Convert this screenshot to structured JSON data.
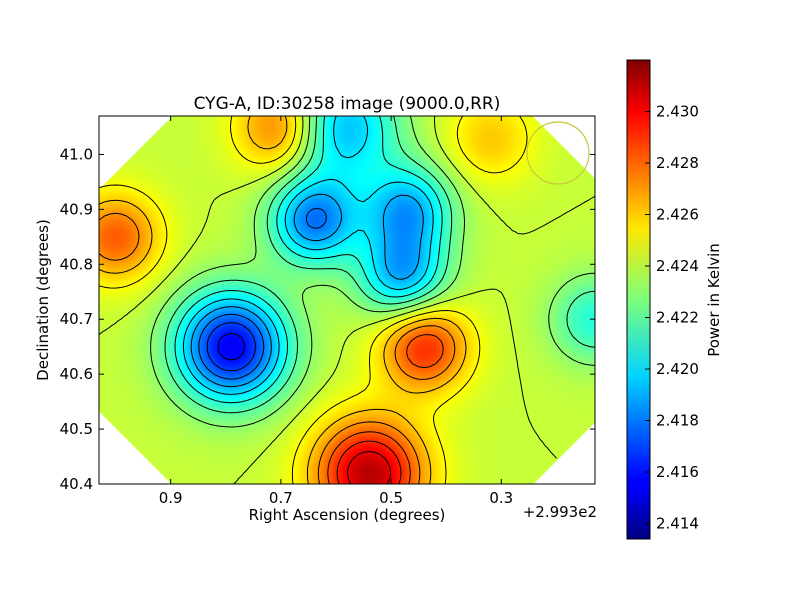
{
  "chart_data": {
    "type": "heatmap",
    "title": "CYG-A, ID:30258 image (9000.0,RR)",
    "xlabel": "Right Ascension (degrees)",
    "ylabel": "Declination (degrees)",
    "x_offset_label": "+2.993e2",
    "xlim": [
      1.03,
      0.13
    ],
    "ylim": [
      40.4,
      41.07
    ],
    "x_ticks": [
      0.9,
      0.7,
      0.5,
      0.3
    ],
    "x_tick_labels": [
      "0.9",
      "0.7",
      "0.5",
      "0.3"
    ],
    "y_ticks": [
      40.4,
      40.5,
      40.6,
      40.7,
      40.8,
      40.9,
      41.0
    ],
    "y_tick_labels": [
      "40.4",
      "40.5",
      "40.6",
      "40.7",
      "40.8",
      "40.9",
      "41.0"
    ],
    "colorbar": {
      "label": "Power in Kelvin",
      "range": [
        2.4134,
        2.432
      ],
      "ticks": [
        2.414,
        2.416,
        2.418,
        2.42,
        2.422,
        2.424,
        2.426,
        2.428,
        2.43
      ],
      "tick_labels": [
        "2.414",
        "2.416",
        "2.418",
        "2.420",
        "2.422",
        "2.424",
        "2.426",
        "2.428",
        "2.430"
      ],
      "colormap": "jet"
    },
    "features": [
      {
        "kind": "maximum",
        "ra": 0.54,
        "dec": 40.42,
        "value": 2.431
      },
      {
        "kind": "high",
        "ra": 1.0,
        "dec": 40.85,
        "value": 2.428
      },
      {
        "kind": "high",
        "ra": 0.7,
        "dec": 41.05,
        "value": 2.428
      },
      {
        "kind": "high",
        "ra": 0.32,
        "dec": 41.03,
        "value": 2.426
      },
      {
        "kind": "high",
        "ra": 0.44,
        "dec": 40.65,
        "value": 2.429
      },
      {
        "kind": "minimum",
        "ra": 0.79,
        "dec": 40.65,
        "value": 2.4155
      },
      {
        "kind": "minimum",
        "ra": 0.59,
        "dec": 41.05,
        "value": 2.419
      },
      {
        "kind": "low",
        "ra": 0.64,
        "dec": 40.88,
        "value": 2.418
      },
      {
        "kind": "low",
        "ra": 0.47,
        "dec": 40.9,
        "value": 2.419
      },
      {
        "kind": "low",
        "ra": 0.48,
        "dec": 40.78,
        "value": 2.419
      },
      {
        "kind": "low",
        "ra": 0.13,
        "dec": 40.7,
        "value": 2.421
      }
    ],
    "beam_circle": {
      "ra": 0.25,
      "dec": 41.0,
      "color": "#c8c83c"
    },
    "grid": false
  }
}
